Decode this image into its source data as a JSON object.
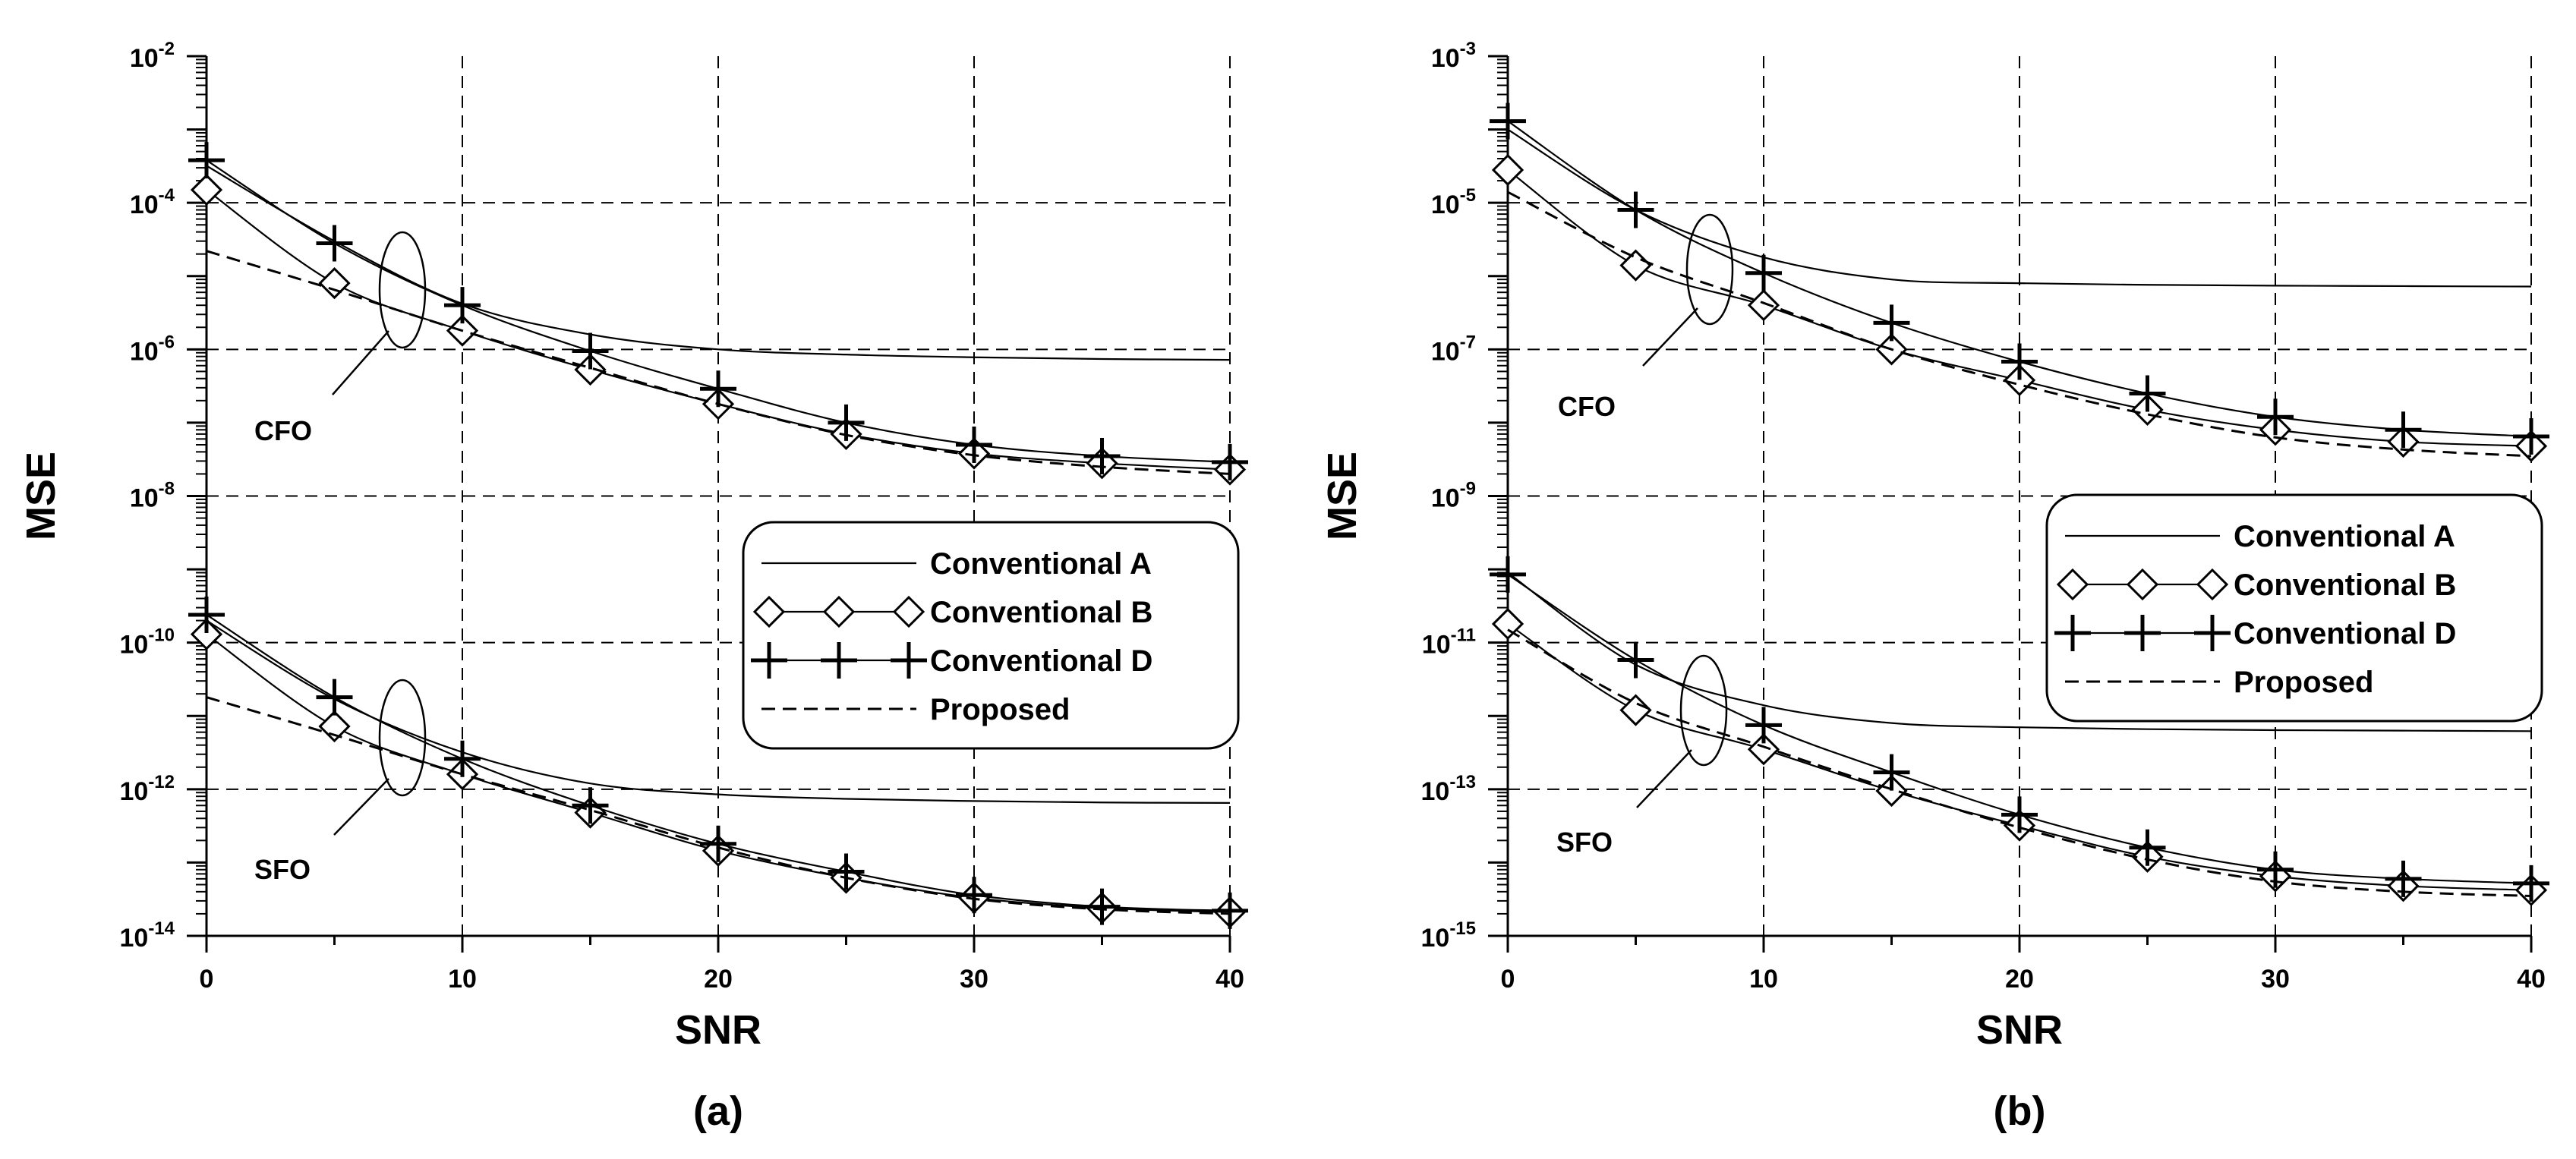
{
  "colors": {
    "background": "#ffffff",
    "ink": "#000000"
  },
  "chart_data": [
    {
      "type": "line",
      "panel_label": "(a)",
      "xlabel": "SNR",
      "ylabel": "MSE",
      "yscale": "log",
      "xlim": [
        0,
        40
      ],
      "ylim_exp": [
        -14,
        -2
      ],
      "x_ticks": [
        "0",
        "10",
        "20",
        "30",
        "40"
      ],
      "y_tick_labels": [
        {
          "exp": -2,
          "base": "10",
          "sup": "-2"
        },
        {
          "exp": -4,
          "base": "10",
          "sup": "-4"
        },
        {
          "exp": -6,
          "base": "10",
          "sup": "-6"
        },
        {
          "exp": -8,
          "base": "10",
          "sup": "-8"
        },
        {
          "exp": -10,
          "base": "10",
          "sup": "-10"
        },
        {
          "exp": -12,
          "base": "10",
          "sup": "-12"
        },
        {
          "exp": -14,
          "base": "10",
          "sup": "-14"
        }
      ],
      "grid": "dashed",
      "annotations": [
        "CFO",
        "SFO"
      ],
      "legend": {
        "placement": "right-middle",
        "entries": [
          "Conventional A",
          "Conventional B",
          "Conventional D",
          "Proposed"
        ]
      },
      "series": [
        {
          "name": "Conventional A",
          "group": "CFO",
          "marker": "none",
          "style": "solid",
          "x": [
            0,
            5,
            10,
            15,
            20,
            25,
            30,
            35,
            40
          ],
          "y": [
            0.00032,
            3e-05,
            4.2e-06,
            1.6e-06,
            1e-06,
            8.5e-07,
            7.8e-07,
            7.4e-07,
            7.2e-07
          ]
        },
        {
          "name": "Conventional B",
          "group": "CFO",
          "marker": "diamond",
          "style": "solid",
          "x": [
            0,
            5,
            10,
            15,
            20,
            25,
            30,
            35,
            40
          ],
          "y": [
            0.00015,
            8e-06,
            1.8e-06,
            5.3e-07,
            1.8e-07,
            7e-08,
            3.8e-08,
            2.8e-08,
            2.3e-08
          ]
        },
        {
          "name": "Conventional D",
          "group": "CFO",
          "marker": "plus",
          "style": "solid",
          "x": [
            0,
            5,
            10,
            15,
            20,
            25,
            30,
            35,
            40
          ],
          "y": [
            0.00038,
            2.8e-05,
            4e-06,
            9.5e-07,
            2.9e-07,
            1e-07,
            5e-08,
            3.5e-08,
            2.9e-08
          ]
        },
        {
          "name": "Proposed",
          "group": "CFO",
          "marker": "none",
          "style": "dashed",
          "x": [
            0,
            5,
            10,
            15,
            20,
            25,
            30,
            35,
            40
          ],
          "y": [
            2.2e-05,
            6.5e-06,
            1.8e-06,
            5.6e-07,
            1.8e-07,
            6.8e-08,
            3.6e-08,
            2.5e-08,
            2e-08
          ]
        },
        {
          "name": "Conventional A",
          "group": "SFO",
          "marker": "none",
          "style": "solid",
          "x": [
            0,
            5,
            10,
            15,
            20,
            25,
            30,
            35,
            40
          ],
          "y": [
            2e-10,
            1.7e-11,
            3.2e-12,
            1.2e-12,
            8.5e-13,
            7.4e-13,
            6.9e-13,
            6.6e-13,
            6.5e-13
          ]
        },
        {
          "name": "Conventional B",
          "group": "SFO",
          "marker": "diamond",
          "style": "solid",
          "x": [
            0,
            5,
            10,
            15,
            20,
            25,
            30,
            35,
            40
          ],
          "y": [
            1.3e-10,
            7.2e-12,
            1.6e-12,
            4.8e-13,
            1.45e-13,
            6.2e-14,
            3.3e-14,
            2.4e-14,
            2.1e-14
          ]
        },
        {
          "name": "Conventional D",
          "group": "SFO",
          "marker": "plus",
          "style": "solid",
          "x": [
            0,
            5,
            10,
            15,
            20,
            25,
            30,
            35,
            40
          ],
          "y": [
            2.4e-10,
            1.8e-11,
            2.6e-12,
            6e-13,
            1.8e-13,
            7.5e-14,
            3.6e-14,
            2.5e-14,
            2.2e-14
          ]
        },
        {
          "name": "Proposed",
          "group": "SFO",
          "marker": "none",
          "style": "dashed",
          "x": [
            0,
            5,
            10,
            15,
            20,
            25,
            30,
            35,
            40
          ],
          "y": [
            1.8e-11,
            5.5e-12,
            1.6e-12,
            5.2e-13,
            1.6e-13,
            6.2e-14,
            3.2e-14,
            2.3e-14,
            2e-14
          ]
        }
      ]
    },
    {
      "type": "line",
      "panel_label": "(b)",
      "xlabel": "SNR",
      "ylabel": "MSE",
      "yscale": "log",
      "xlim": [
        0,
        40
      ],
      "ylim_exp": [
        -15,
        -3
      ],
      "x_ticks": [
        "0",
        "10",
        "20",
        "30",
        "40"
      ],
      "y_tick_labels": [
        {
          "exp": -3,
          "base": "10",
          "sup": "-3"
        },
        {
          "exp": -5,
          "base": "10",
          "sup": "-5"
        },
        {
          "exp": -7,
          "base": "10",
          "sup": "-7"
        },
        {
          "exp": -9,
          "base": "10",
          "sup": "-9"
        },
        {
          "exp": -11,
          "base": "10",
          "sup": "-11"
        },
        {
          "exp": -13,
          "base": "10",
          "sup": "-13"
        },
        {
          "exp": -15,
          "base": "10",
          "sup": "-15"
        }
      ],
      "grid": "dashed",
      "annotations": [
        "CFO",
        "SFO"
      ],
      "legend": {
        "placement": "right-middle",
        "entries": [
          "Conventional A",
          "Conventional B",
          "Conventional D",
          "Proposed"
        ]
      },
      "series": [
        {
          "name": "Conventional A",
          "group": "CFO",
          "marker": "none",
          "style": "solid",
          "x": [
            0,
            5,
            10,
            15,
            20,
            25,
            30,
            35,
            40
          ],
          "y": [
            0.0001,
            8e-06,
            1.8e-06,
            9e-07,
            8e-07,
            7.6e-07,
            7.4e-07,
            7.3e-07,
            7.2e-07
          ]
        },
        {
          "name": "Conventional B",
          "group": "CFO",
          "marker": "diamond",
          "style": "solid",
          "x": [
            0,
            5,
            10,
            15,
            20,
            25,
            30,
            35,
            40
          ],
          "y": [
            2.8e-05,
            1.4e-06,
            4e-07,
            1e-07,
            3.8e-08,
            1.5e-08,
            8e-09,
            5.5e-09,
            4.8e-09
          ]
        },
        {
          "name": "Conventional D",
          "group": "CFO",
          "marker": "plus",
          "style": "solid",
          "x": [
            0,
            5,
            10,
            15,
            20,
            25,
            30,
            35,
            40
          ],
          "y": [
            0.00013,
            8e-06,
            1.1e-06,
            2.3e-07,
            6.8e-08,
            2.5e-08,
            1.2e-08,
            8e-09,
            6.5e-09
          ]
        },
        {
          "name": "Proposed",
          "group": "CFO",
          "marker": "none",
          "style": "dashed",
          "x": [
            0,
            5,
            10,
            15,
            20,
            25,
            30,
            35,
            40
          ],
          "y": [
            1.4e-05,
            1.8e-06,
            4.3e-07,
            1e-07,
            3.3e-08,
            1.3e-08,
            6.3e-09,
            4.3e-09,
            3.5e-09
          ]
        },
        {
          "name": "Conventional A",
          "group": "SFO",
          "marker": "none",
          "style": "solid",
          "x": [
            0,
            5,
            10,
            15,
            20,
            25,
            30,
            35,
            40
          ],
          "y": [
            9e-11,
            5e-12,
            1.4e-12,
            8e-13,
            7e-13,
            6.6e-13,
            6.4e-13,
            6.3e-13,
            6.2e-13
          ]
        },
        {
          "name": "Conventional B",
          "group": "SFO",
          "marker": "diamond",
          "style": "solid",
          "x": [
            0,
            5,
            10,
            15,
            20,
            25,
            30,
            35,
            40
          ],
          "y": [
            1.8e-11,
            1.2e-12,
            3.5e-13,
            9.5e-14,
            3.2e-14,
            1.2e-14,
            6.5e-15,
            4.8e-15,
            4.2e-15
          ]
        },
        {
          "name": "Conventional D",
          "group": "SFO",
          "marker": "plus",
          "style": "solid",
          "x": [
            0,
            5,
            10,
            15,
            20,
            25,
            30,
            35,
            40
          ],
          "y": [
            8.5e-11,
            5.8e-12,
            7.5e-13,
            1.7e-13,
            4.5e-14,
            1.6e-14,
            8e-15,
            6e-15,
            5.2e-15
          ]
        },
        {
          "name": "Proposed",
          "group": "SFO",
          "marker": "none",
          "style": "dashed",
          "x": [
            0,
            5,
            10,
            15,
            20,
            25,
            30,
            35,
            40
          ],
          "y": [
            1.5e-11,
            1.5e-12,
            3.8e-13,
            1e-13,
            3e-14,
            1.1e-14,
            5.5e-15,
            4e-15,
            3.5e-15
          ]
        }
      ]
    }
  ]
}
